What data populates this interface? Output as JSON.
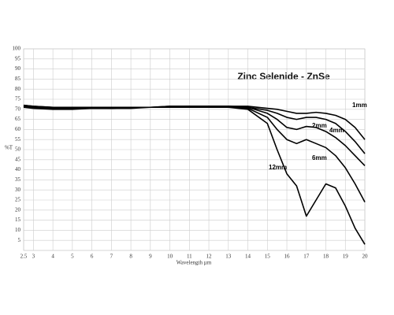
{
  "chart_data": {
    "type": "line",
    "title": "Zinc Selenide - ZnSe",
    "x_label": "Wavelength µm",
    "y_label": "%T",
    "x": [
      2.5,
      3,
      4,
      5,
      6,
      7,
      8,
      9,
      10,
      11,
      12,
      13,
      14,
      15,
      15.5,
      16,
      16.5,
      17,
      17.5,
      18,
      18.5,
      19,
      19.5,
      20
    ],
    "series": [
      {
        "name": "1mm",
        "color": "#000000",
        "values": [
          72,
          71.5,
          71,
          71,
          71,
          71,
          71,
          71,
          71.5,
          71.5,
          71.5,
          71.5,
          71.5,
          70.5,
          70,
          69,
          68,
          68,
          68.5,
          68,
          67,
          65,
          61,
          55
        ]
      },
      {
        "name": "2mm",
        "color": "#000000",
        "values": [
          72,
          71.5,
          71,
          71,
          71,
          71,
          71,
          71,
          71.5,
          71.5,
          71.5,
          71.5,
          71,
          69.5,
          68,
          66,
          65,
          66,
          66,
          65,
          63,
          59,
          54,
          48
        ]
      },
      {
        "name": "4mm",
        "color": "#000000",
        "values": [
          71.5,
          71,
          71,
          70.5,
          71,
          70.5,
          71,
          71,
          71,
          71.5,
          71.5,
          71.5,
          71,
          68,
          65,
          61,
          60,
          61.5,
          61,
          59,
          56,
          52,
          47,
          42
        ]
      },
      {
        "name": "6mm",
        "color": "#000000",
        "values": [
          71.5,
          71,
          70.5,
          70.5,
          70.5,
          70.5,
          71,
          71,
          71,
          71.5,
          71.5,
          71.5,
          70.5,
          66,
          60,
          55,
          53,
          55,
          53,
          51,
          47,
          41,
          33,
          24
        ]
      },
      {
        "name": "12mm",
        "color": "#000000",
        "values": [
          71,
          70.5,
          70,
          70,
          70.5,
          70.5,
          70.5,
          71,
          71,
          71,
          71,
          71,
          70,
          63,
          50,
          38,
          32,
          17,
          25,
          33,
          31,
          22,
          11,
          3
        ]
      }
    ],
    "xlim": [
      2.5,
      20
    ],
    "xticks": [
      2.5,
      3,
      4,
      5,
      6,
      7,
      8,
      9,
      10,
      11,
      12,
      13,
      14,
      15,
      16,
      17,
      18,
      19,
      20
    ],
    "ylim": [
      0,
      100
    ],
    "yticks": [
      5,
      10,
      15,
      20,
      25,
      30,
      35,
      40,
      45,
      50,
      55,
      60,
      65,
      70,
      75,
      80,
      85,
      90,
      95,
      100
    ],
    "grid": true
  }
}
